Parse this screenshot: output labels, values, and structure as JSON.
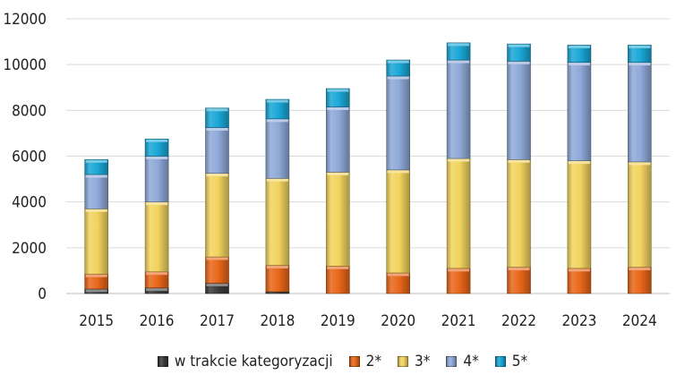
{
  "chart_data": {
    "type": "bar",
    "stacked": true,
    "title": "",
    "xlabel": "",
    "ylabel": "",
    "ylim": [
      0,
      12000
    ],
    "yticks": [
      0,
      2000,
      4000,
      6000,
      8000,
      10000,
      12000
    ],
    "grid": true,
    "legend_position": "bottom",
    "categories": [
      "2015",
      "2016",
      "2017",
      "2018",
      "2019",
      "2020",
      "2021",
      "2022",
      "2023",
      "2024"
    ],
    "series": [
      {
        "name": "w trakcie kategoryzacji",
        "color": "#3a3a3a",
        "values": [
          200,
          250,
          450,
          80,
          0,
          0,
          0,
          0,
          0,
          0
        ]
      },
      {
        "name": "2*",
        "color": "#e8671a",
        "values": [
          650,
          700,
          1150,
          1150,
          1200,
          900,
          1100,
          1150,
          1100,
          1150
        ]
      },
      {
        "name": "3*",
        "color": "#f2d35e",
        "values": [
          2850,
          3050,
          3650,
          3800,
          4100,
          4500,
          4800,
          4700,
          4700,
          4600
        ]
      },
      {
        "name": "4*",
        "color": "#8fa9d8",
        "values": [
          1500,
          2000,
          2000,
          2600,
          2850,
          4100,
          4300,
          4300,
          4300,
          4350
        ]
      },
      {
        "name": "5*",
        "color": "#1aa7d6",
        "values": [
          650,
          750,
          850,
          850,
          800,
          700,
          750,
          750,
          750,
          750
        ]
      }
    ]
  }
}
